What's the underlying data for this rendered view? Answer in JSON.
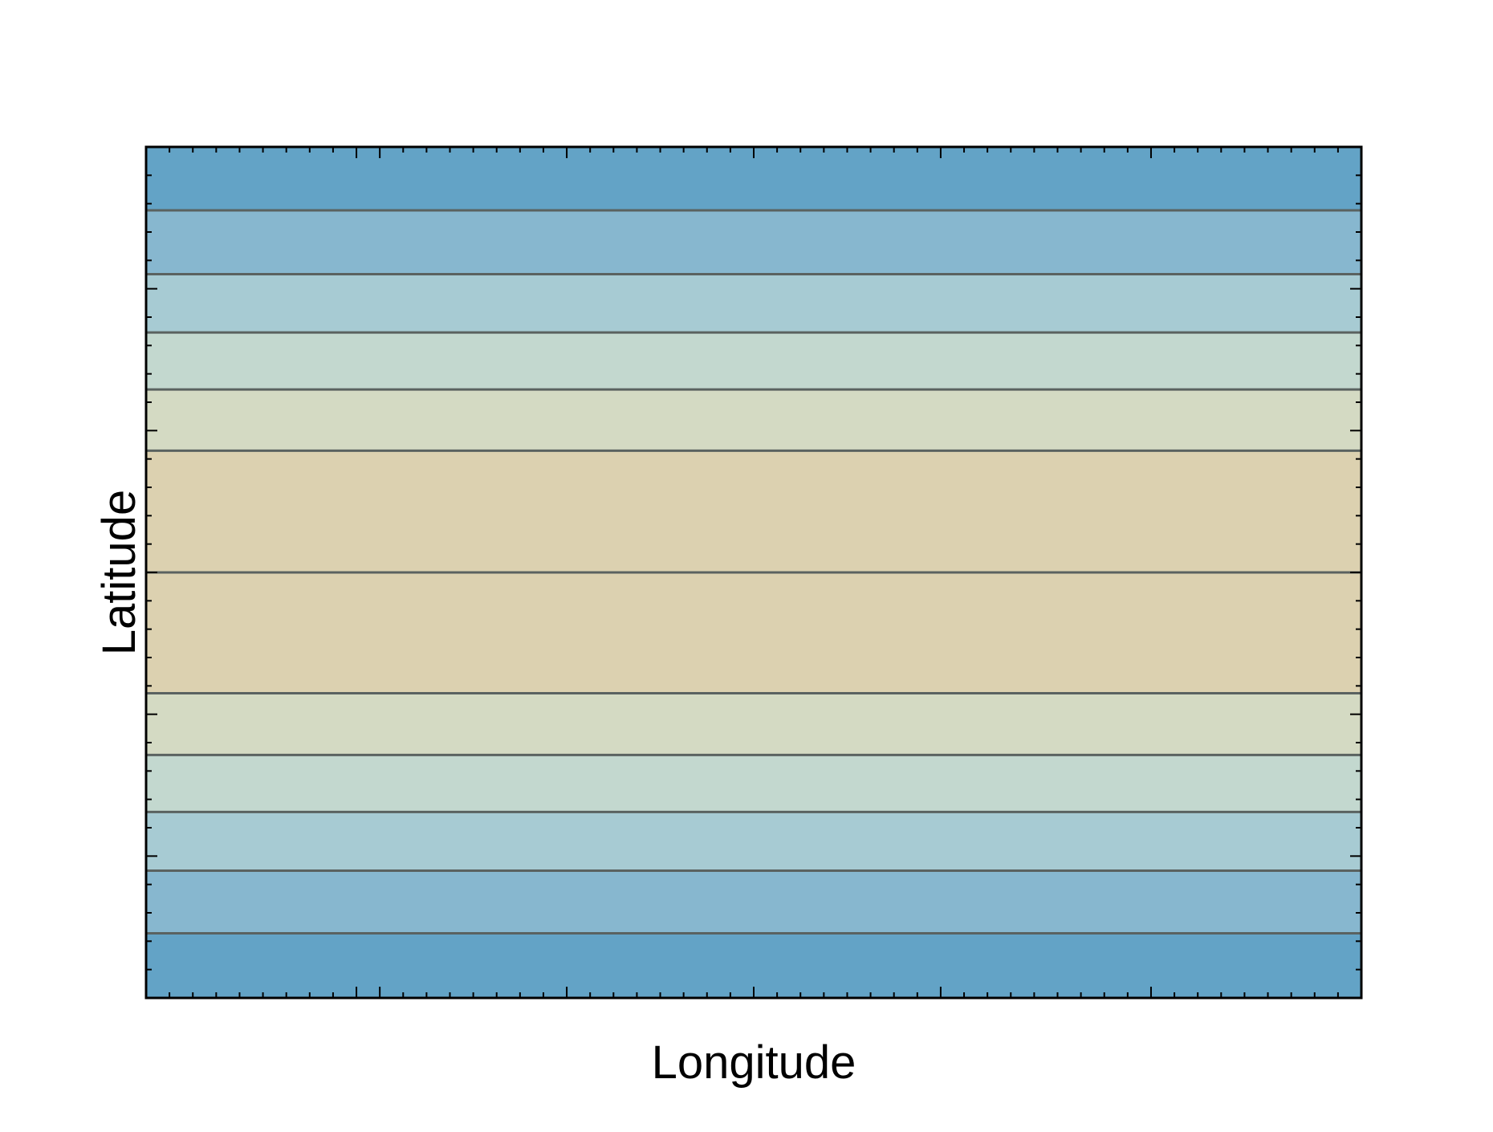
{
  "chart_data": {
    "type": "heatmap",
    "subtype": "filled-contour",
    "title": "",
    "xlabel": "Longitude",
    "ylabel": "Latitude",
    "xlim": [
      0,
      1
    ],
    "ylim": [
      -1,
      1
    ],
    "x_tick_labels": [],
    "y_tick_labels": [],
    "grid": false,
    "legend": "none",
    "contour_line_color": "#5a6260",
    "bands": [
      {
        "y_from": -1.0,
        "y_to": -0.848,
        "color": "#63a3c6"
      },
      {
        "y_from": -0.848,
        "y_to": -0.701,
        "color": "#87b7cf"
      },
      {
        "y_from": -0.701,
        "y_to": -0.563,
        "color": "#a7cbd3"
      },
      {
        "y_from": -0.563,
        "y_to": -0.429,
        "color": "#c3d8cf"
      },
      {
        "y_from": -0.429,
        "y_to": -0.284,
        "color": "#d4dac3"
      },
      {
        "y_from": -0.284,
        "y_to": 0.0,
        "color": "#dcd1b0"
      },
      {
        "y_from": 0.0,
        "y_to": 0.286,
        "color": "#dcd1b0"
      },
      {
        "y_from": 0.286,
        "y_to": 0.43,
        "color": "#d4dac3"
      },
      {
        "y_from": 0.43,
        "y_to": 0.564,
        "color": "#c3d8cf"
      },
      {
        "y_from": 0.564,
        "y_to": 0.701,
        "color": "#a7cbd3"
      },
      {
        "y_from": 0.701,
        "y_to": 0.851,
        "color": "#87b7cf"
      },
      {
        "y_from": 0.851,
        "y_to": 1.0,
        "color": "#63a3c6"
      }
    ],
    "contour_levels_y": [
      -0.848,
      -0.701,
      -0.563,
      -0.429,
      -0.284,
      0.0,
      0.286,
      0.43,
      0.564,
      0.701,
      0.851
    ],
    "x_major_ticks": [
      0.182,
      0.342,
      0.5,
      0.66,
      0.82
    ],
    "y_major_ticks": [
      -0.667,
      -0.333,
      0.0,
      0.333,
      0.667
    ]
  }
}
